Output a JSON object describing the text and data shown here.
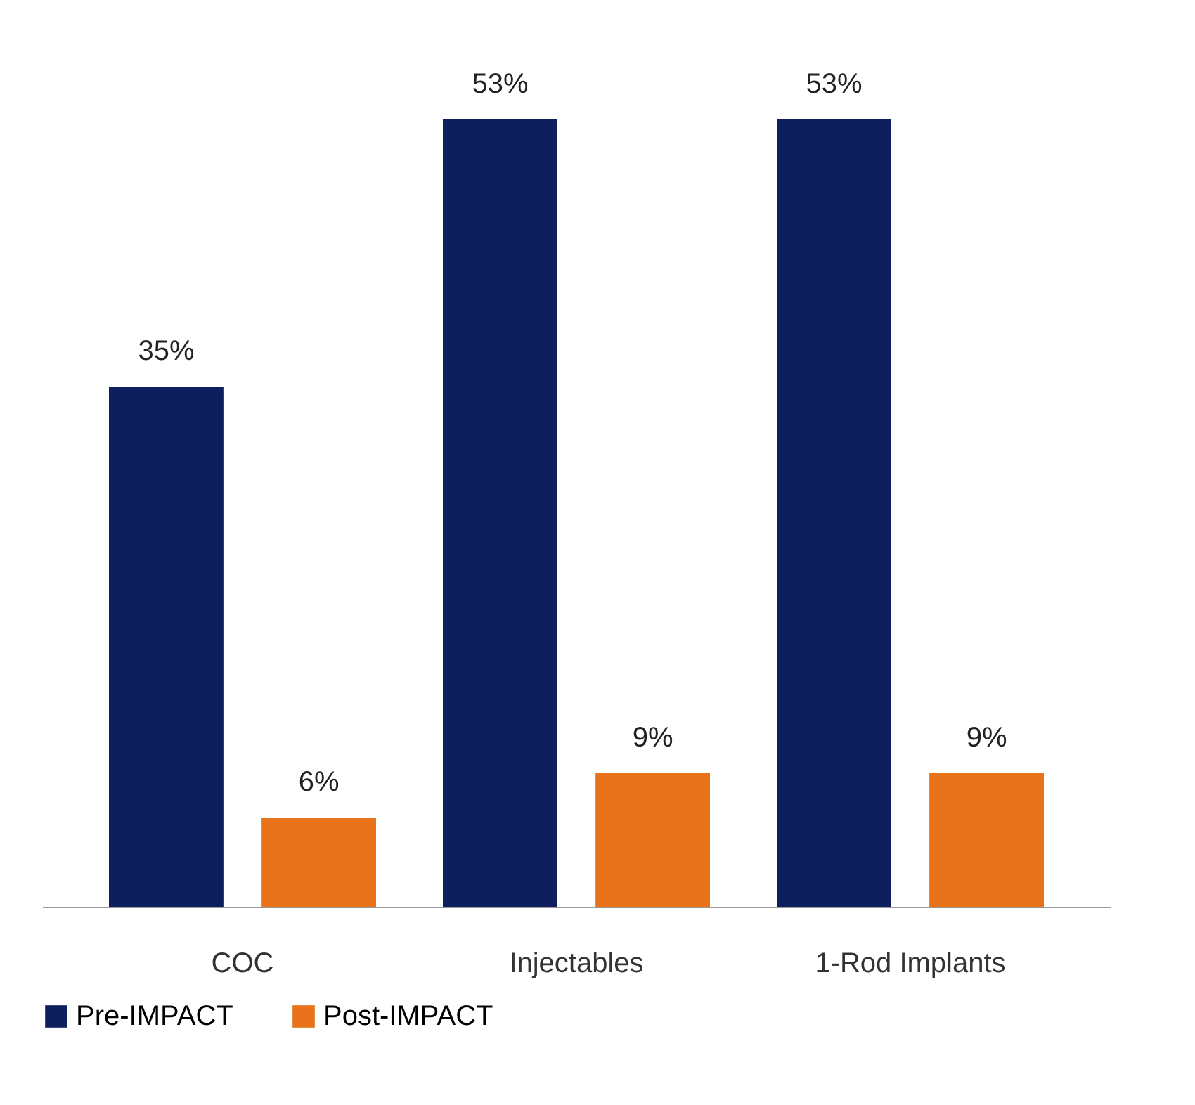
{
  "chart_data": {
    "type": "bar",
    "categories": [
      "COC",
      "Injectables",
      "1-Rod Implants"
    ],
    "series": [
      {
        "name": "Pre-IMPACT",
        "color": "#0d1f5c",
        "values": [
          35,
          53,
          53
        ],
        "value_labels": [
          "35%",
          "53%",
          "53%"
        ]
      },
      {
        "name": "Post-IMPACT",
        "color": "#e8731a",
        "values": [
          6,
          9,
          9
        ],
        "value_labels": [
          "6%",
          "9%",
          "9%"
        ]
      }
    ],
    "legend": "bottom",
    "grid": false
  }
}
